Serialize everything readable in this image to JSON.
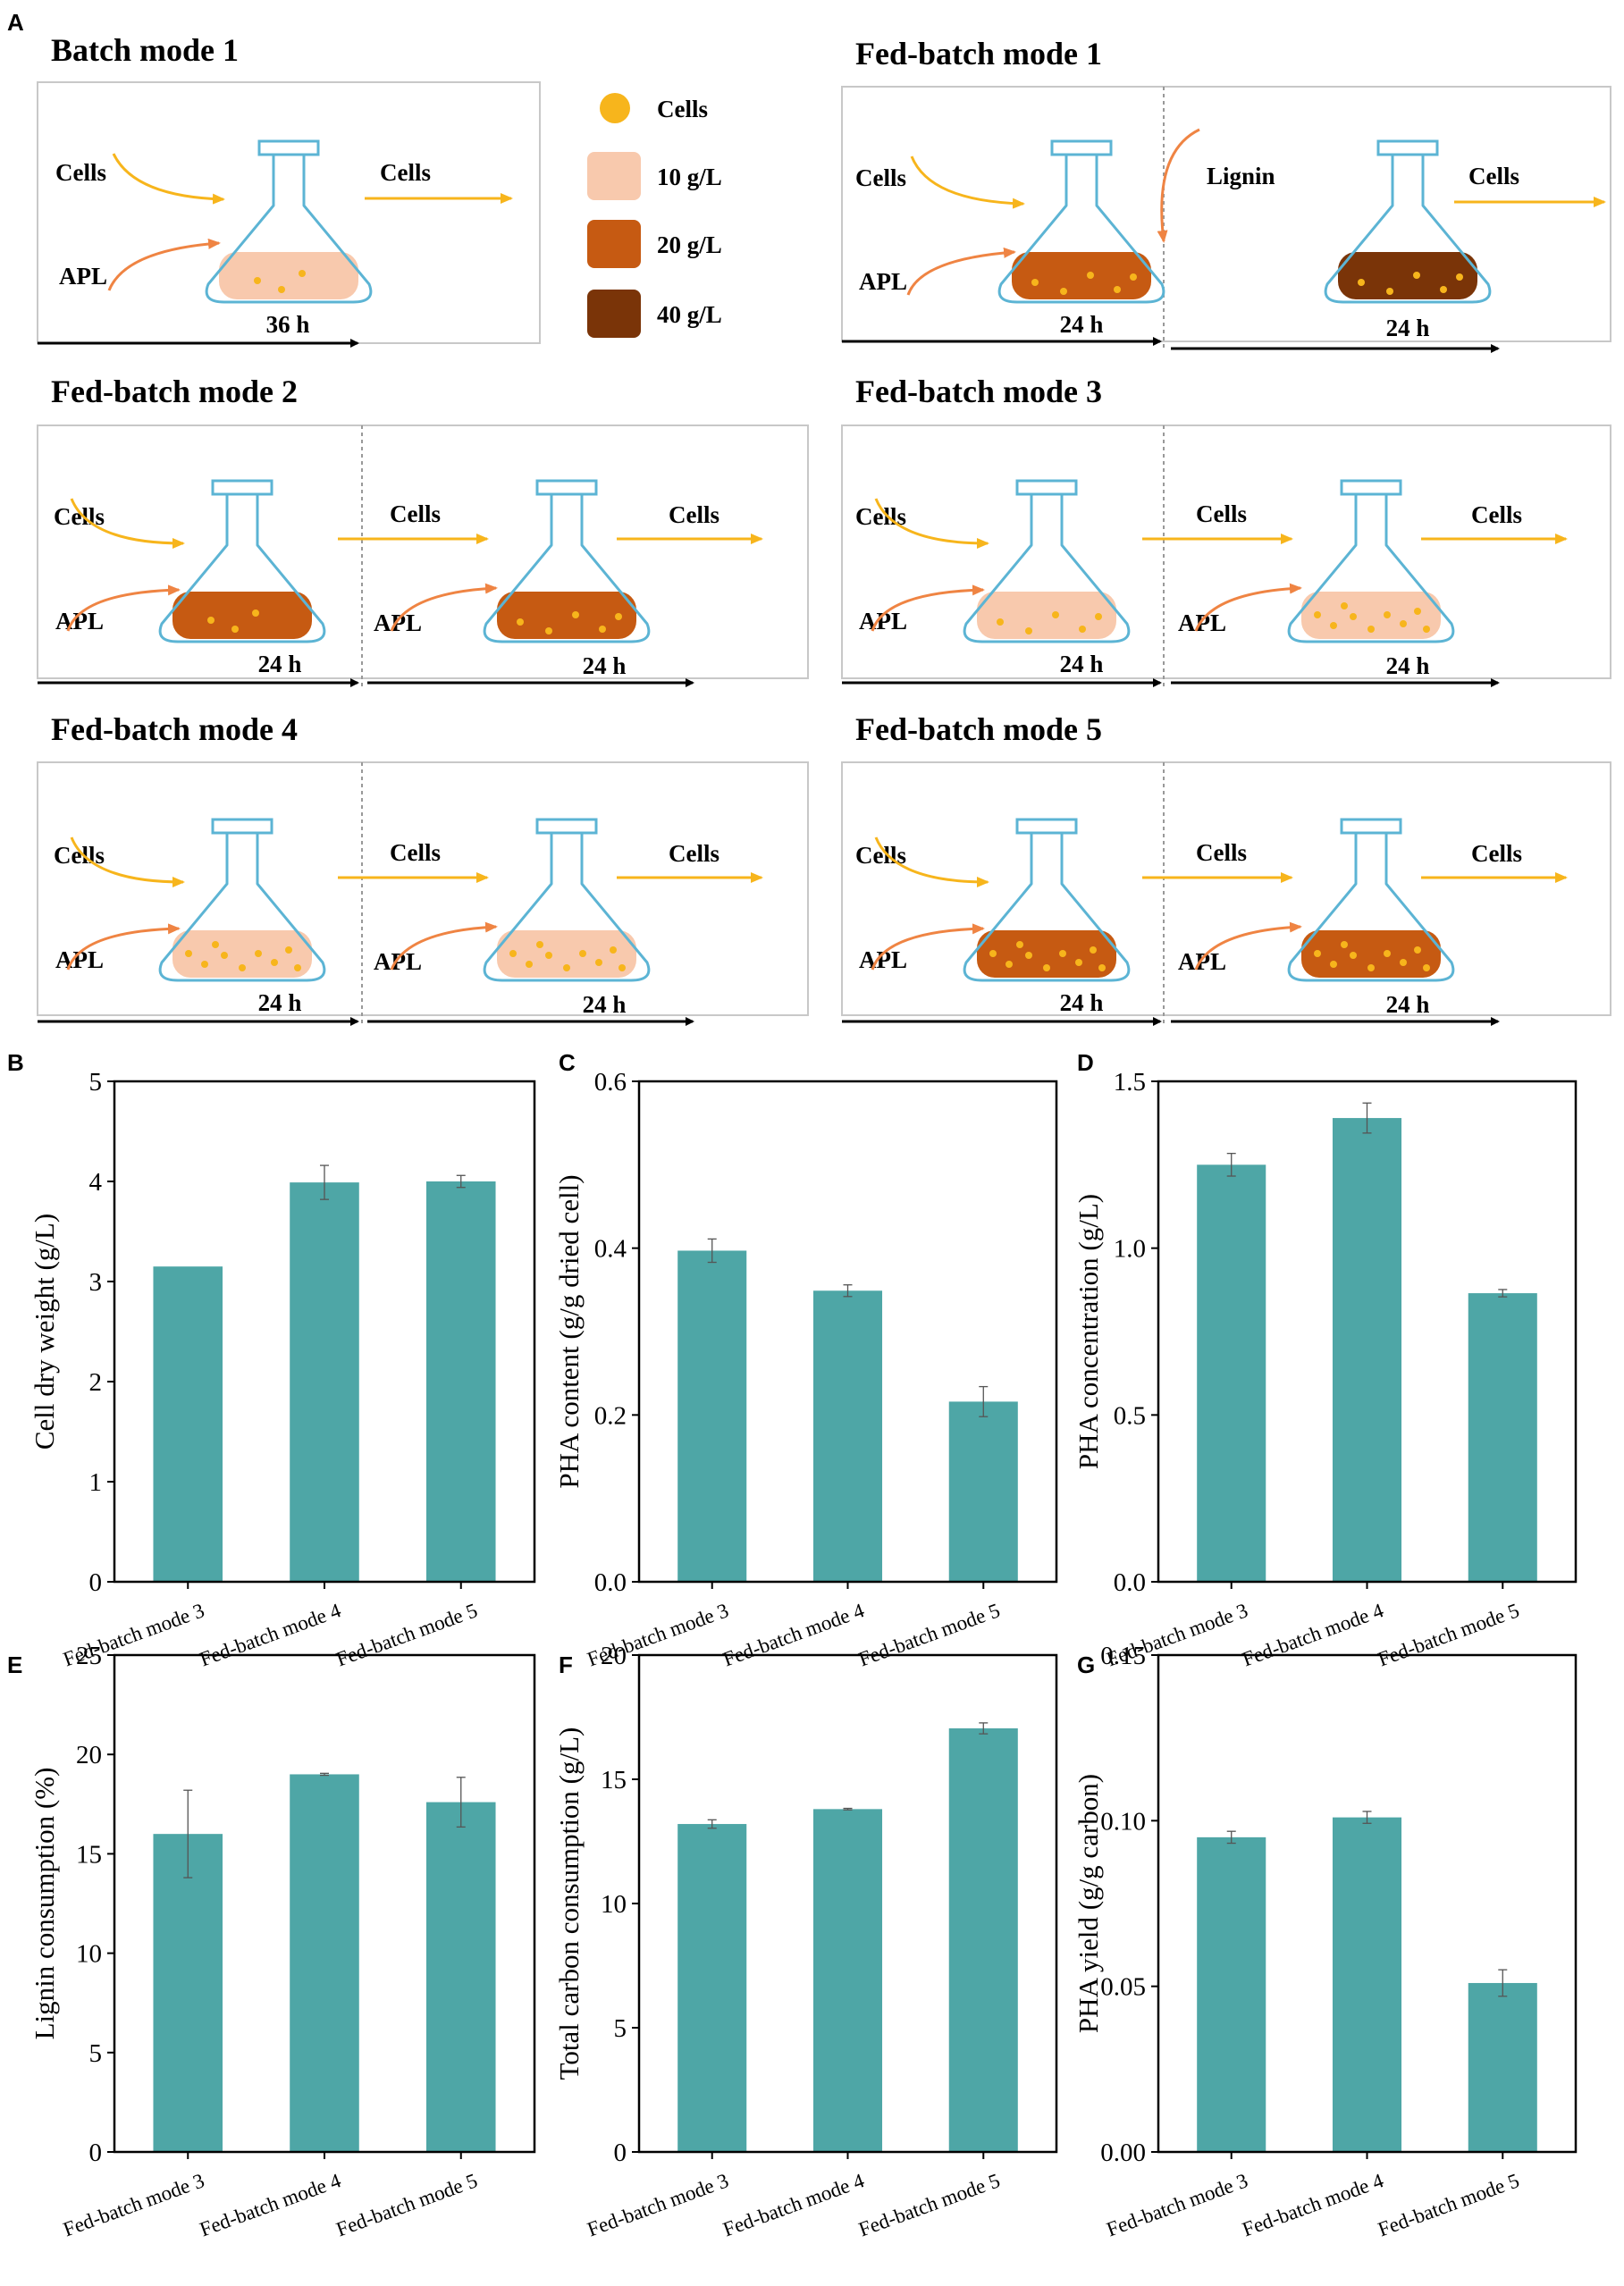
{
  "panels": {
    "A": "A",
    "B": "B",
    "C": "C",
    "D": "D",
    "E": "E",
    "F": "F",
    "G": "G"
  },
  "legend": {
    "cells": "Cells",
    "items": [
      {
        "label": "10 g/L",
        "color": "#f8c9ad"
      },
      {
        "label": "20 g/L",
        "color": "#c65a12"
      },
      {
        "label": "40  g/L",
        "color": "#7a3408"
      }
    ]
  },
  "labels": {
    "cells": "Cells",
    "apl": "APL",
    "lignin": "Lignin"
  },
  "modes": {
    "batch1": {
      "title": "Batch mode 1",
      "time": "36 h"
    },
    "fed1": {
      "title": "Fed-batch mode 1",
      "time1": "24 h",
      "time2": "24 h"
    },
    "fed2": {
      "title": "Fed-batch mode 2",
      "time1": "24 h",
      "time2": "24 h"
    },
    "fed3": {
      "title": "Fed-batch mode 3",
      "time1": "24 h",
      "time2": "24 h"
    },
    "fed4": {
      "title": "Fed-batch mode 4",
      "time1": "24 h",
      "time2": "24 h"
    },
    "fed5": {
      "title": "Fed-batch mode 5",
      "time1": "24 h",
      "time2": "24 h"
    }
  },
  "colors": {
    "bar": "#4ea6a6",
    "cells": "#f7b51c",
    "apl_arrow": "#ef8443",
    "flask": "#5cb4d4",
    "c10": "#f8c9ad",
    "c20": "#c65a12",
    "c40": "#7a3408"
  },
  "chart_data": [
    {
      "id": "B",
      "type": "bar",
      "categories": [
        "Fed-batch mode 3",
        "Fed-batch mode 4",
        "Fed-batch mode 5"
      ],
      "values": [
        3.15,
        3.99,
        4.0
      ],
      "errors": [
        0.0,
        0.17,
        0.06
      ],
      "ylabel": "Cell dry weight (g/L)",
      "ylim": [
        0,
        5
      ],
      "yticks": [
        "0",
        "1",
        "2",
        "3",
        "4",
        "5"
      ],
      "ytickvals": [
        0,
        1,
        2,
        3,
        4,
        5
      ]
    },
    {
      "id": "C",
      "type": "bar",
      "categories": [
        "Fed-batch mode 3",
        "Fed-batch mode 4",
        "Fed-batch mode 5"
      ],
      "values": [
        0.397,
        0.349,
        0.216
      ],
      "errors": [
        0.014,
        0.007,
        0.018
      ],
      "ylabel": "PHA content (g/g dried cell)",
      "ylim": [
        0,
        0.6
      ],
      "yticks": [
        "0.0",
        "0.2",
        "0.4",
        "0.6"
      ],
      "ytickvals": [
        0,
        0.2,
        0.4,
        0.6
      ]
    },
    {
      "id": "D",
      "type": "bar",
      "categories": [
        "Fed-batch mode 3",
        "Fed-batch mode 4",
        "Fed-batch mode 5"
      ],
      "values": [
        1.25,
        1.39,
        0.865
      ],
      "errors": [
        0.034,
        0.045,
        0.011
      ],
      "ylabel": "PHA concentration (g/L)",
      "ylim": [
        0,
        1.5
      ],
      "yticks": [
        "0.0",
        "0.5",
        "1.0",
        "1.5"
      ],
      "ytickvals": [
        0,
        0.5,
        1.0,
        1.5
      ]
    },
    {
      "id": "E",
      "type": "bar",
      "categories": [
        "Fed-batch mode 3",
        "Fed-batch mode 4",
        "Fed-batch mode 5"
      ],
      "values": [
        16.0,
        19.0,
        17.6
      ],
      "errors": [
        2.2,
        0.05,
        1.25
      ],
      "ylabel": "Lignin consumption (%)",
      "ylim": [
        0,
        25
      ],
      "yticks": [
        "0",
        "5",
        "10",
        "15",
        "20",
        "25"
      ],
      "ytickvals": [
        0,
        5,
        10,
        15,
        20,
        25
      ]
    },
    {
      "id": "F",
      "type": "bar",
      "categories": [
        "Fed-batch mode 3",
        "Fed-batch mode 4",
        "Fed-batch mode 5"
      ],
      "values": [
        13.2,
        13.8,
        17.05
      ],
      "errors": [
        0.17,
        0.03,
        0.22
      ],
      "ylabel": "Total carbon consumption (g/L)",
      "ylim": [
        0,
        20
      ],
      "yticks": [
        "0",
        "5",
        "10",
        "15",
        "20"
      ],
      "ytickvals": [
        0,
        5,
        10,
        15,
        20
      ]
    },
    {
      "id": "G",
      "type": "bar",
      "categories": [
        "Fed-batch mode 3",
        "Fed-batch mode 4",
        "Fed-batch mode 5"
      ],
      "values": [
        0.095,
        0.101,
        0.051
      ],
      "errors": [
        0.0018,
        0.0018,
        0.004
      ],
      "ylabel": "PHA yield (g/g carbon)",
      "ylim": [
        0,
        0.15
      ],
      "yticks": [
        "0.00",
        "0.05",
        "0.10",
        "0.15"
      ],
      "ytickvals": [
        0,
        0.05,
        0.1,
        0.15
      ]
    }
  ]
}
